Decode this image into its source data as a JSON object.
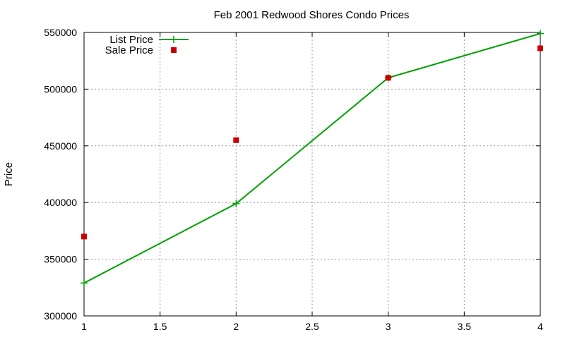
{
  "chart_data": {
    "type": "line",
    "title": "Feb 2001 Redwood Shores Condo Prices",
    "xlabel": "",
    "ylabel": "Price",
    "xlim": [
      1,
      4
    ],
    "ylim": [
      300000,
      550000
    ],
    "xticks": [
      1,
      1.5,
      2,
      2.5,
      3,
      3.5,
      4
    ],
    "xtick_labels": [
      "1",
      "1.5",
      "2",
      "2.5",
      "3",
      "3.5",
      "4"
    ],
    "yticks": [
      300000,
      350000,
      400000,
      450000,
      500000,
      550000
    ],
    "ytick_labels": [
      "300000",
      "350000",
      "400000",
      "450000",
      "500000",
      "550000"
    ],
    "grid": true,
    "legend_position": "top-left",
    "series": [
      {
        "name": "List Price",
        "style": "line-with-plus-markers",
        "color": "#00a000",
        "x": [
          1,
          2,
          3,
          4
        ],
        "y": [
          329000,
          399000,
          510000,
          549000
        ]
      },
      {
        "name": "Sale Price",
        "style": "square-markers",
        "color": "#cc0000",
        "x": [
          1,
          2,
          3,
          4
        ],
        "y": [
          370000,
          455000,
          510000,
          536000
        ]
      }
    ]
  }
}
